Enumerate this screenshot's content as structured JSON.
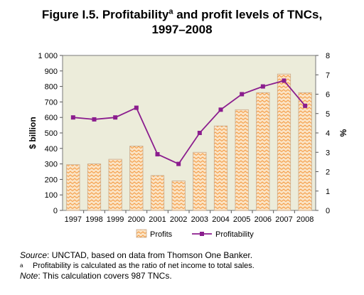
{
  "title": {
    "main": "Figure I.5.  Profitability",
    "superscript": "a",
    "rest": " and profit levels of TNCs,",
    "line2": "1997–2008"
  },
  "chart_data": {
    "type": "bar",
    "categories": [
      "1997",
      "1998",
      "1999",
      "2000",
      "2001",
      "2002",
      "2003",
      "2004",
      "2005",
      "2006",
      "2007",
      "2008"
    ],
    "series": [
      {
        "name": "Profits",
        "type": "bar",
        "axis": "left",
        "values": [
          295,
          300,
          330,
          415,
          225,
          190,
          375,
          545,
          650,
          760,
          880,
          760
        ]
      },
      {
        "name": "Profitability",
        "type": "line",
        "axis": "right",
        "values": [
          4.8,
          4.7,
          4.8,
          5.3,
          2.9,
          2.4,
          4.0,
          5.2,
          6.0,
          6.4,
          6.7,
          5.4
        ]
      }
    ],
    "ylabel_left": "$ billion",
    "ylabel_right": "%",
    "ylim_left": [
      0,
      1000
    ],
    "ylim_right": [
      0,
      8
    ],
    "yticks_left": [
      "0",
      "100",
      "200",
      "300",
      "400",
      "500",
      "600",
      "700",
      "800",
      "900",
      "1 000"
    ],
    "yticks_right": [
      "0",
      "1",
      "2",
      "3",
      "4",
      "5",
      "6",
      "7",
      "8"
    ],
    "legend_position": "bottom",
    "grid": false,
    "colors": {
      "plot_bg": "#ececda",
      "bar_fill": "#fbe3c4",
      "bar_pattern": "#f39639",
      "bar_edge": "#c9a98a",
      "line": "#8b1d8e"
    }
  },
  "footer": {
    "source_label": "Source",
    "source_text": ":  UNCTAD, based on data from Thomson One Banker.",
    "note_a_marker": "a",
    "note_a_text": "Profitability is calculated as the ratio of net income to total sales.",
    "note_label": "Note",
    "note_text": ":     This calculation covers 987 TNCs."
  }
}
